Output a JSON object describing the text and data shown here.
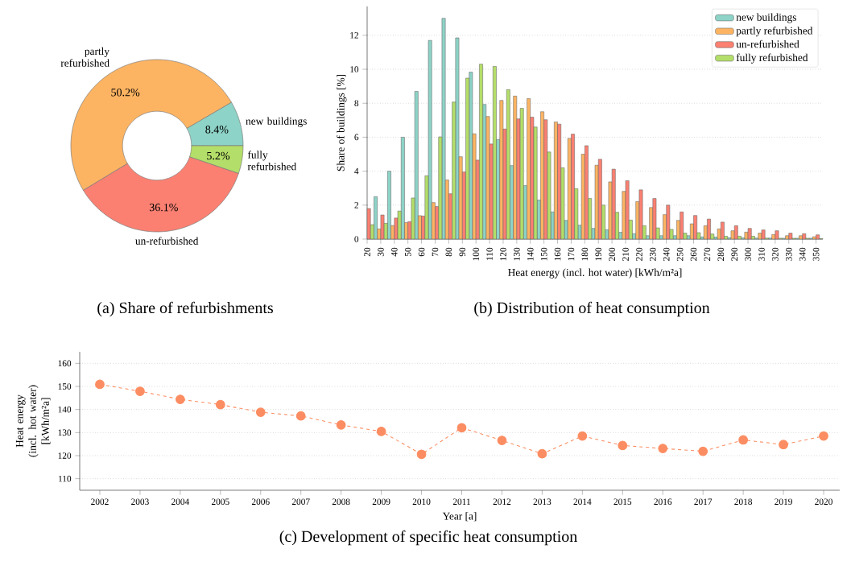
{
  "chart_data": [
    {
      "type": "donut",
      "categories": [
        "new buildings",
        "partly refurbished",
        "un-refurbished",
        "fully refurbished"
      ],
      "values": [
        8.4,
        50.2,
        36.1,
        5.2
      ],
      "colors": [
        "#8dd3c7",
        "#fdb462",
        "#fb8072",
        "#b3de69"
      ],
      "value_labels": [
        "8.4%",
        "50.2%",
        "36.1%",
        "5.2%"
      ],
      "annotations": [
        "(a) Share of refurbishments"
      ]
    },
    {
      "type": "bar",
      "x": [
        20,
        30,
        40,
        50,
        60,
        70,
        80,
        90,
        100,
        110,
        120,
        130,
        140,
        150,
        160,
        170,
        180,
        190,
        200,
        210,
        220,
        230,
        240,
        250,
        260,
        270,
        280,
        290,
        300,
        310,
        320,
        330,
        340,
        350
      ],
      "series": [
        {
          "name": "new buildings",
          "color": "#8dd3c7",
          "values": [
            null,
            2.5,
            4.0,
            6.0,
            8.7,
            11.7,
            13.0,
            11.85,
            9.83,
            7.93,
            5.87,
            4.33,
            3.15,
            2.3,
            1.6,
            1.1,
            0.82,
            0.63,
            0.55,
            0.4,
            0.32,
            0.2,
            0.2,
            0.2,
            0.2,
            0.13,
            0.12,
            0.08,
            0.08,
            0.06,
            0.06,
            0.05,
            0.05,
            0.05
          ]
        },
        {
          "name": "partly refurbished",
          "color": "#fdb462",
          "values": [
            null,
            0.6,
            0.8,
            0.97,
            1.38,
            2.15,
            3.48,
            4.85,
            6.2,
            7.22,
            8.17,
            8.42,
            8.27,
            7.5,
            6.9,
            5.93,
            5.0,
            4.35,
            3.37,
            2.81,
            2.21,
            1.86,
            1.44,
            1.1,
            0.9,
            0.79,
            0.6,
            0.49,
            0.41,
            0.35,
            0.27,
            0.2,
            0.2,
            0.14
          ]
        },
        {
          "name": "un-refurbished",
          "color": "#fb8072",
          "values": [
            1.8,
            1.42,
            1.24,
            1.03,
            1.36,
            1.92,
            2.67,
            3.95,
            4.65,
            5.6,
            6.48,
            7.08,
            7.18,
            7.03,
            6.77,
            6.18,
            5.5,
            4.7,
            4.12,
            3.44,
            2.9,
            2.39,
            2.0,
            1.6,
            1.39,
            1.18,
            1.0,
            0.79,
            0.63,
            0.54,
            0.49,
            0.35,
            0.32,
            0.25
          ]
        },
        {
          "name": "fully refurbished",
          "color": "#b3de69",
          "values": [
            0.85,
            0.93,
            1.65,
            2.42,
            3.73,
            6.02,
            8.07,
            9.48,
            10.3,
            10.17,
            8.8,
            7.7,
            6.6,
            5.13,
            4.2,
            2.97,
            2.39,
            2.0,
            1.58,
            1.12,
            0.79,
            0.66,
            0.57,
            0.35,
            0.38,
            0.3,
            0.17,
            0.17,
            0.17,
            0.06,
            0.05,
            0.05,
            0.05,
            0.03
          ]
        }
      ],
      "xlim": [
        20,
        355
      ],
      "ylim": [
        0,
        13.7
      ],
      "xticks": [
        20,
        30,
        40,
        50,
        60,
        70,
        80,
        90,
        100,
        110,
        120,
        130,
        140,
        150,
        160,
        170,
        180,
        190,
        200,
        210,
        220,
        230,
        240,
        250,
        260,
        270,
        280,
        290,
        300,
        310,
        320,
        330,
        340,
        350
      ],
      "yticks": [
        0,
        2,
        4,
        6,
        8,
        10,
        12
      ],
      "xlabel": "Heat energy (incl. hot water) [kWh/m²a]",
      "ylabel": "Share of buildings [%]",
      "grid": "y",
      "legend": "top right",
      "annotations": [
        "(b) Distribution of heat consumption"
      ]
    },
    {
      "type": "line",
      "x": [
        2002,
        2003,
        2004,
        2005,
        2006,
        2007,
        2008,
        2009,
        2010,
        2011,
        2012,
        2013,
        2014,
        2015,
        2016,
        2017,
        2018,
        2019,
        2020
      ],
      "series": [
        {
          "color": "#fc8d62",
          "values": [
            150.9,
            147.9,
            144.4,
            142.1,
            138.8,
            137.2,
            133.3,
            130.5,
            120.6,
            132.1,
            126.6,
            120.8,
            128.5,
            124.4,
            123.1,
            121.9,
            126.8,
            124.8,
            128.5
          ]
        }
      ],
      "xlim": [
        2001.5,
        2020.4
      ],
      "ylim": [
        105,
        165
      ],
      "xticks": [
        2002,
        2003,
        2004,
        2005,
        2006,
        2007,
        2008,
        2009,
        2010,
        2011,
        2012,
        2013,
        2014,
        2015,
        2016,
        2017,
        2018,
        2019,
        2020
      ],
      "yticks": [
        110,
        120,
        130,
        140,
        150,
        160
      ],
      "xlabel": "Year [a]",
      "ylabel": "Heat energy (incl. hot water) [kWh/m²a]",
      "grid": "y",
      "marker": "circle",
      "line_style": "dashed",
      "annotations": [
        "(c) Development of specific heat consumption"
      ]
    }
  ]
}
